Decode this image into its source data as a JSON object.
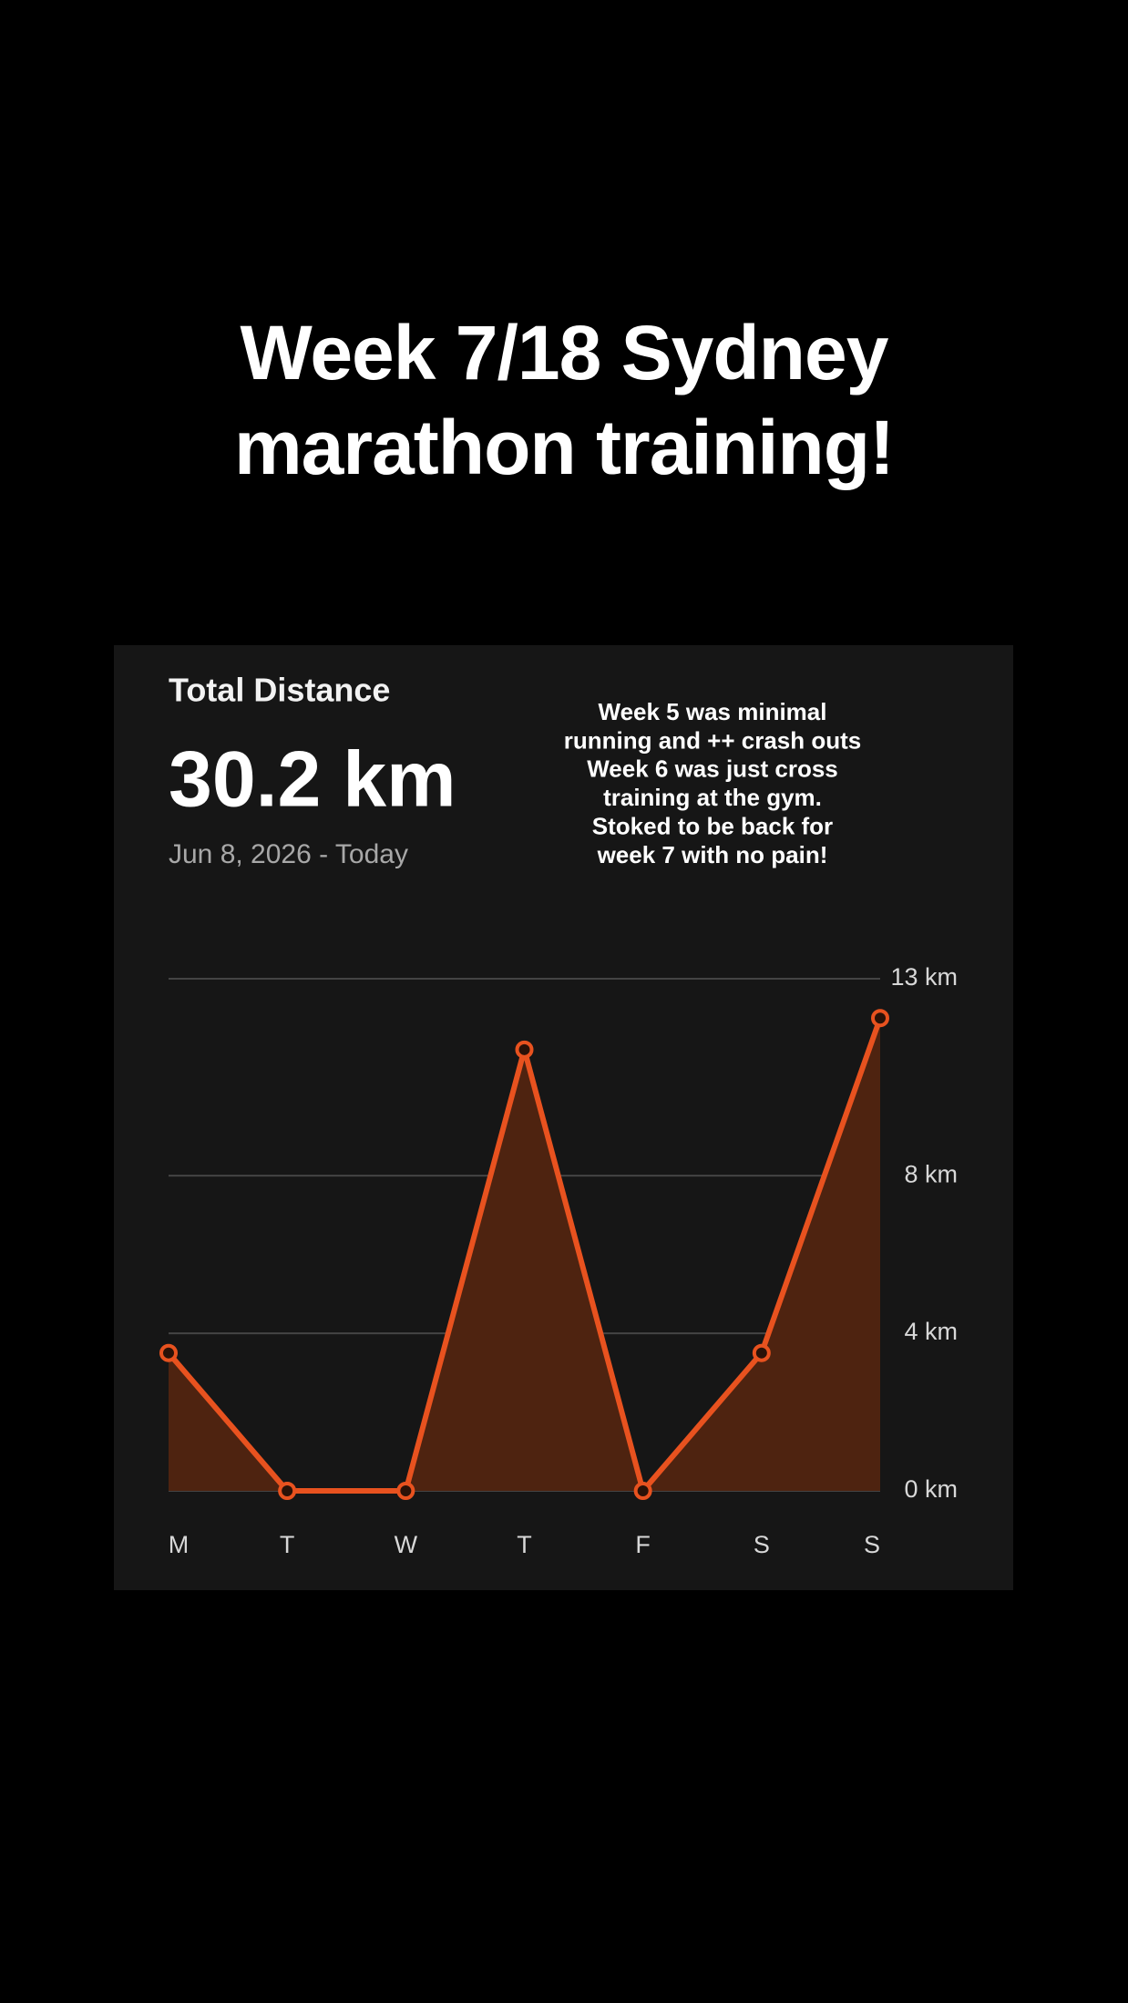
{
  "caption": "Week 7/18 Sydney marathon training!",
  "chart_data": {
    "type": "area",
    "title": "Total Distance",
    "total_label": "30.2 km",
    "date_range": "Jun 8, 2026 - Today",
    "annotation": [
      "Week 5 was minimal",
      "running and ++ crash outs",
      "Week 6 was just cross",
      "training at the gym.",
      "Stoked to be back for",
      "week 7 with no pain!"
    ],
    "categories": [
      "M",
      "T",
      "W",
      "T",
      "F",
      "S",
      "S"
    ],
    "values": [
      3.5,
      0,
      0,
      11.2,
      0,
      3.5,
      12.0
    ],
    "color": "#e8521f",
    "fill_color": "#4e2310",
    "ylim": [
      0,
      13
    ],
    "yticks": [
      {
        "value": 0,
        "label": "0 km"
      },
      {
        "value": 4,
        "label": "4 km"
      },
      {
        "value": 8,
        "label": "8 km"
      },
      {
        "value": 13,
        "label": "13 km"
      }
    ],
    "grid": true
  }
}
